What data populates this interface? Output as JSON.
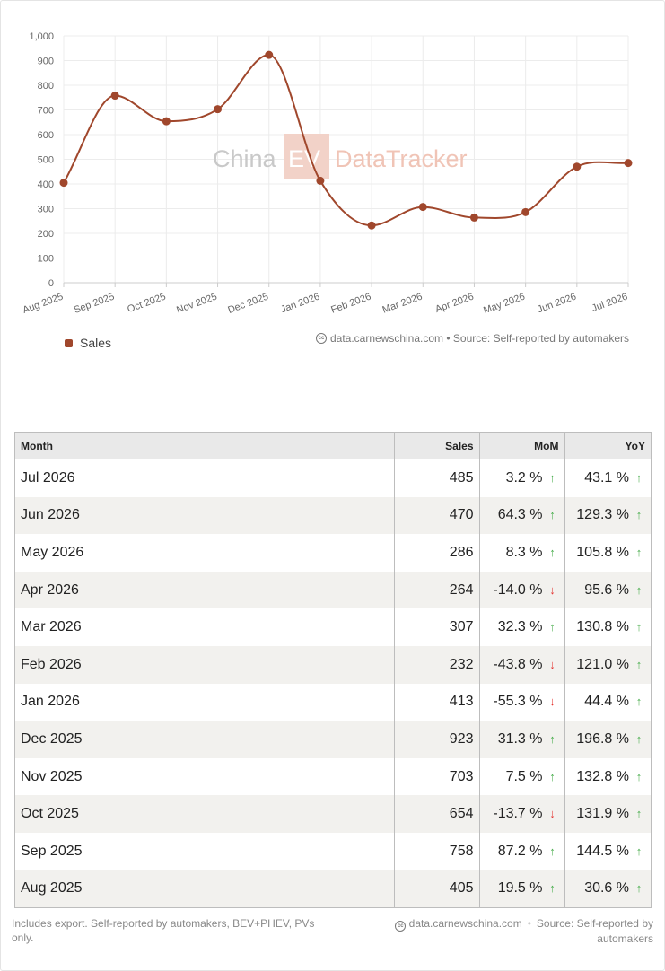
{
  "chart_data": {
    "type": "line",
    "x": [
      "Aug 2025",
      "Sep 2025",
      "Oct 2025",
      "Nov 2025",
      "Dec 2025",
      "Jan 2026",
      "Feb 2026",
      "Mar 2026",
      "Apr 2026",
      "May 2026",
      "Jun 2026",
      "Jul 2026"
    ],
    "series": [
      {
        "name": "Sales",
        "color": "#a0472c",
        "values": [
          405,
          758,
          654,
          703,
          923,
          413,
          232,
          307,
          264,
          286,
          470,
          485
        ]
      }
    ],
    "yticks": [
      "0",
      "100",
      "200",
      "300",
      "400",
      "500",
      "600",
      "700",
      "800",
      "900",
      "1,000"
    ],
    "ylim": [
      0,
      1000
    ],
    "grid": true,
    "legend": "bottom-left",
    "watermark": {
      "part1": "China",
      "part2": "EV",
      "part3": "DataTracker"
    }
  },
  "credit": {
    "text": "data.carnewschina.com • Source: Self-reported by automakers",
    "icon": "cc-icon"
  },
  "table": {
    "headers": {
      "month": "Month",
      "sales": "Sales",
      "mom": "MoM",
      "yoy": "YoY"
    },
    "rows": [
      {
        "month": "Jul 2026",
        "sales": "485",
        "mom": "3.2 %",
        "mom_dir": "up",
        "yoy": "43.1 %",
        "yoy_dir": "up"
      },
      {
        "month": "Jun 2026",
        "sales": "470",
        "mom": "64.3 %",
        "mom_dir": "up",
        "yoy": "129.3 %",
        "yoy_dir": "up"
      },
      {
        "month": "May 2026",
        "sales": "286",
        "mom": "8.3 %",
        "mom_dir": "up",
        "yoy": "105.8 %",
        "yoy_dir": "up"
      },
      {
        "month": "Apr 2026",
        "sales": "264",
        "mom": "-14.0 %",
        "mom_dir": "down",
        "yoy": "95.6 %",
        "yoy_dir": "up"
      },
      {
        "month": "Mar 2026",
        "sales": "307",
        "mom": "32.3 %",
        "mom_dir": "up",
        "yoy": "130.8 %",
        "yoy_dir": "up"
      },
      {
        "month": "Feb 2026",
        "sales": "232",
        "mom": "-43.8 %",
        "mom_dir": "down",
        "yoy": "121.0 %",
        "yoy_dir": "up"
      },
      {
        "month": "Jan 2026",
        "sales": "413",
        "mom": "-55.3 %",
        "mom_dir": "down",
        "yoy": "44.4 %",
        "yoy_dir": "up"
      },
      {
        "month": "Dec 2025",
        "sales": "923",
        "mom": "31.3 %",
        "mom_dir": "up",
        "yoy": "196.8 %",
        "yoy_dir": "up"
      },
      {
        "month": "Nov 2025",
        "sales": "703",
        "mom": "7.5 %",
        "mom_dir": "up",
        "yoy": "132.8 %",
        "yoy_dir": "up"
      },
      {
        "month": "Oct 2025",
        "sales": "654",
        "mom": "-13.7 %",
        "mom_dir": "down",
        "yoy": "131.9 %",
        "yoy_dir": "up"
      },
      {
        "month": "Sep 2025",
        "sales": "758",
        "mom": "87.2 %",
        "mom_dir": "up",
        "yoy": "144.5 %",
        "yoy_dir": "up"
      },
      {
        "month": "Aug 2025",
        "sales": "405",
        "mom": "19.5 %",
        "mom_dir": "up",
        "yoy": "30.6 %",
        "yoy_dir": "up"
      }
    ],
    "colors": {
      "up": "#4caf50",
      "down": "#e53935"
    }
  },
  "footer": {
    "note": "Includes export. Self-reported by automakers, BEV+PHEV, PVs only.",
    "site": "data.carnewschina.com",
    "source": "Source: Self-reported by automakers"
  }
}
